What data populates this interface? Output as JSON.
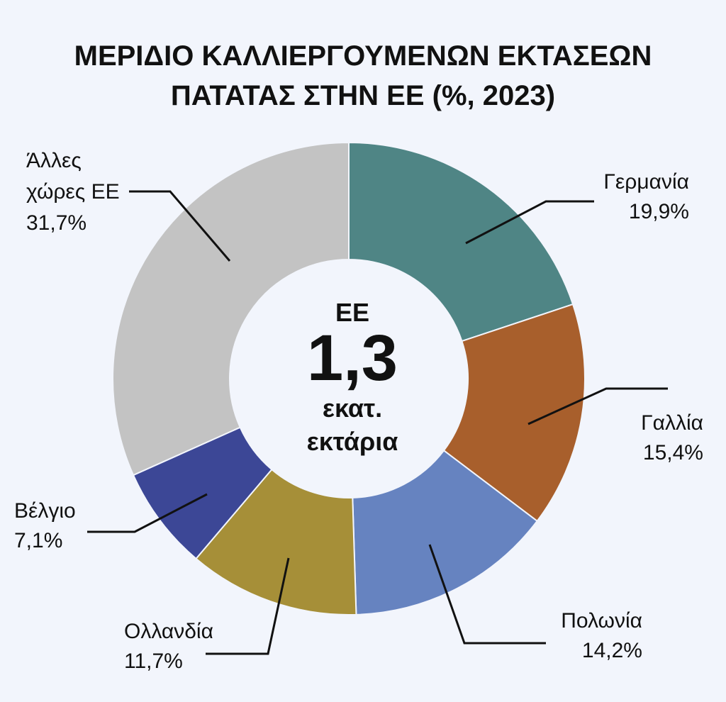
{
  "chart_data": {
    "type": "pie",
    "title_lines": [
      "ΜΕΡΙΔΙΟ ΚΑΛΛΙΕΡΓΟΥΜΕΝΩΝ ΕΚΤΑΣΕΩΝ",
      "ΠΑΤΑΤΑΣ ΣΤΗΝ ΕΕ (%, 2023)"
    ],
    "center": {
      "line1": "ΕΕ",
      "value": "1,3",
      "line3": "εκατ.",
      "line4": "εκτάρια"
    },
    "slices": [
      {
        "label": "Γερμανία",
        "value": 19.9,
        "value_label": "19,9%",
        "color": "#4f8585"
      },
      {
        "label": "Γαλλία",
        "value": 15.4,
        "value_label": "15,4%",
        "color": "#a85f2c"
      },
      {
        "label": "Πολωνία",
        "value": 14.2,
        "value_label": "14,2%",
        "color": "#6683c0"
      },
      {
        "label": "Ολλανδία",
        "value": 11.7,
        "value_label": "11,7%",
        "color": "#a68f38"
      },
      {
        "label": "Βέλγιο",
        "value": 7.1,
        "value_label": "7,1%",
        "color": "#3c4796"
      },
      {
        "label": "Άλλες χώρες ΕΕ",
        "label_lines": [
          "Άλλες",
          "χώρες ΕΕ"
        ],
        "value": 31.7,
        "value_label": "31,7%",
        "color": "#c3c3c3"
      }
    ]
  }
}
